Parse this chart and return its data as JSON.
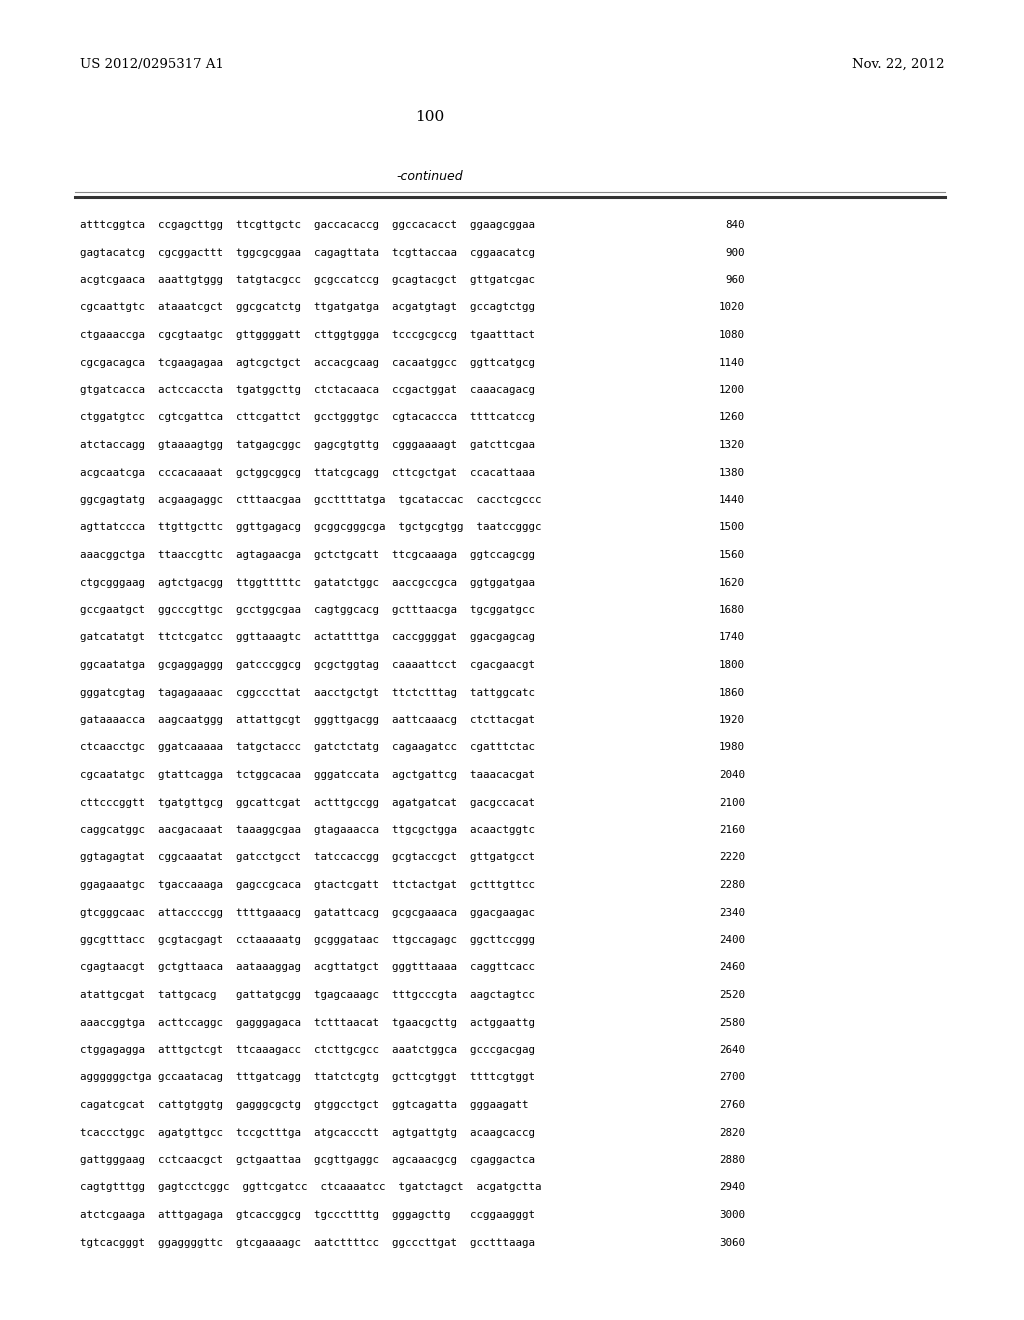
{
  "header_left": "US 2012/0295317 A1",
  "header_right": "Nov. 22, 2012",
  "page_number": "100",
  "continued_label": "-continued",
  "background_color": "#ffffff",
  "text_color": "#000000",
  "sequence_lines": [
    {
      "seq": "atttcggtca  ccgagcttgg  ttcgttgctc  gaccacaccg  ggccacacct  ggaagcggaa",
      "num": "840"
    },
    {
      "seq": "gagtacatcg  cgcggacttt  tggcgcggaa  cagagttata  tcgttaccaa  cggaacatcg",
      "num": "900"
    },
    {
      "seq": "acgtcgaaca  aaattgtggg  tatgtacgcc  gcgccatccg  gcagtacgct  gttgatcgac",
      "num": "960"
    },
    {
      "seq": "cgcaattgtc  ataaatcgct  ggcgcatctg  ttgatgatga  acgatgtagt  gccagtctgg",
      "num": "1020"
    },
    {
      "seq": "ctgaaaccga  cgcgtaatgc  gttggggatt  cttggtggga  tcccgcgccg  tgaatttact",
      "num": "1080"
    },
    {
      "seq": "cgcgacagca  tcgaagagaa  agtcgctgct  accacgcaag  cacaatggcc  ggttcatgcg",
      "num": "1140"
    },
    {
      "seq": "gtgatcacca  actccaccta  tgatggcttg  ctctacaaca  ccgactggat  caaacagacg",
      "num": "1200"
    },
    {
      "seq": "ctggatgtcc  cgtcgattca  cttcgattct  gcctgggtgc  cgtacaccca  ttttcatccg",
      "num": "1260"
    },
    {
      "seq": "atctaccagg  gtaaaagtgg  tatgagcggc  gagcgtgttg  cgggaaaagt  gatcttcgaa",
      "num": "1320"
    },
    {
      "seq": "acgcaatcga  cccacaaaat  gctggcggcg  ttatcgcagg  cttcgctgat  ccacattaaa",
      "num": "1380"
    },
    {
      "seq": "ggcgagtatg  acgaagaggc  ctttaacgaa  gccttttatga  tgcataccac  cacctcgccc",
      "num": "1440"
    },
    {
      "seq": "agttatccca  ttgttgcttc  ggttgagacg  gcggcgggcga  tgctgcgtgg  taatccgggc",
      "num": "1500"
    },
    {
      "seq": "aaacggctga  ttaaccgttc  agtagaacga  gctctgcatt  ttcgcaaaga  ggtccagcgg",
      "num": "1560"
    },
    {
      "seq": "ctgcgggaag  agtctgacgg  ttggtttttc  gatatctggc  aaccgccgca  ggtggatgaa",
      "num": "1620"
    },
    {
      "seq": "gccgaatgct  ggcccgttgc  gcctggcgaa  cagtggcacg  gctttaacga  tgcggatgcc",
      "num": "1680"
    },
    {
      "seq": "gatcatatgt  ttctcgatcc  ggttaaagtc  actattttga  caccggggat  ggacgagcag",
      "num": "1740"
    },
    {
      "seq": "ggcaatatga  gcgaggaggg  gatcccggcg  gcgctggtag  caaaattcct  cgacgaacgt",
      "num": "1800"
    },
    {
      "seq": "gggatcgtag  tagagaaaac  cggcccttat  aacctgctgt  ttctctttag  tattggcatc",
      "num": "1860"
    },
    {
      "seq": "gataaaacca  aagcaatggg  attattgcgt  gggttgacgg  aattcaaacg  ctcttacgat",
      "num": "1920"
    },
    {
      "seq": "ctcaacctgc  ggatcaaaaa  tatgctaccc  gatctctatg  cagaagatcc  cgatttctac",
      "num": "1980"
    },
    {
      "seq": "cgcaatatgc  gtattcagga  tctggcacaa  gggatccata  agctgattcg  taaacacgat",
      "num": "2040"
    },
    {
      "seq": "cttcccggtt  tgatgttgcg  ggcattcgat  actttgccgg  agatgatcat  gacgccacat",
      "num": "2100"
    },
    {
      "seq": "caggcatggc  aacgacaaat  taaaggcgaa  gtagaaacca  ttgcgctgga  acaactggtc",
      "num": "2160"
    },
    {
      "seq": "ggtagagtat  cggcaaatat  gatcctgcct  tatccaccgg  gcgtaccgct  gttgatgcct",
      "num": "2220"
    },
    {
      "seq": "ggagaaatgc  tgaccaaaga  gagccgcaca  gtactcgatt  ttctactgat  gctttgttcc",
      "num": "2280"
    },
    {
      "seq": "gtcgggcaac  attaccccgg  ttttgaaacg  gatattcacg  gcgcgaaaca  ggacgaagac",
      "num": "2340"
    },
    {
      "seq": "ggcgtttacc  gcgtacgagt  cctaaaaatg  gcgggataac  ttgccagagc  ggcttccggg",
      "num": "2400"
    },
    {
      "seq": "cgagtaacgt  gctgttaaca  aataaaggag  acgttatgct  gggtttaaaa  caggttcacc",
      "num": "2460"
    },
    {
      "seq": "atattgcgat  tattgcacg   gattatgcgg  tgagcaaagc  tttgcccgta  aagctagtcc",
      "num": "2520"
    },
    {
      "seq": "aaaccggtga  acttccaggc  gagggagaca  tctttaacat  tgaacgcttg  actggaattg",
      "num": "2580"
    },
    {
      "seq": "ctggagagga  atttgctcgt  ttcaaagacc  ctcttgcgcc  aaatctggca  gcccgacgag",
      "num": "2640"
    },
    {
      "seq": "aggggggctga gccaatacag  tttgatcagg  ttatctcgtg  gcttcgtggt  ttttcgtggt",
      "num": "2700"
    },
    {
      "seq": "cagatcgcat  cattgtggtg  gagggcgctg  gtggcctgct  ggtcagatta  gggaagatt",
      "num": "2760"
    },
    {
      "seq": "tcaccctggc  agatgttgcc  tccgctttga  atgcaccctt  agtgattgtg  acaagcaccg",
      "num": "2820"
    },
    {
      "seq": "gattgggaag  cctcaacgct  gctgaattaa  gcgttgaggc  agcaaacgcg  cgaggactca",
      "num": "2880"
    },
    {
      "seq": "cagtgtttgg  gagtcctcggc  ggttcgatcc  ctcaaaatcc  tgatctagct  acgatgctta",
      "num": "2940"
    },
    {
      "seq": "atctcgaaga  atttgagaga  gtcaccggcg  tgcccttttg  gggagcttg   ccggaagggt",
      "num": "3000"
    },
    {
      "seq": "tgtcacgggt  ggaggggttc  gtcgaaaagc  aatcttttcc  ggcccttgat  gcctttaaga",
      "num": "3060"
    }
  ]
}
